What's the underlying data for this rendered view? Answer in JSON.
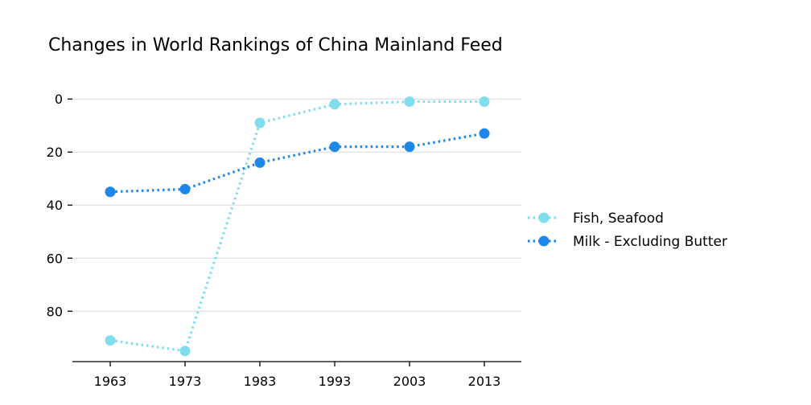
{
  "chart_data": {
    "type": "line",
    "title": "Changes in World Rankings of China Mainland Feed",
    "xlabel": "",
    "ylabel": "",
    "categories": [
      "1963",
      "1973",
      "1983",
      "1993",
      "2003",
      "2013"
    ],
    "y_ticks": [
      "0",
      "20",
      "40",
      "60",
      "80"
    ],
    "ylim": [
      99,
      -4
    ],
    "y_inverted": true,
    "grid": "horizontal",
    "legend_position": "right",
    "series": [
      {
        "name": "Fish, Seafood",
        "color": "#7fdeed",
        "values": [
          91,
          95,
          9,
          2,
          1,
          1
        ]
      },
      {
        "name": "Milk - Excluding Butter",
        "color": "#1f87e8",
        "values": [
          35,
          34,
          24,
          18,
          18,
          13
        ]
      }
    ]
  }
}
